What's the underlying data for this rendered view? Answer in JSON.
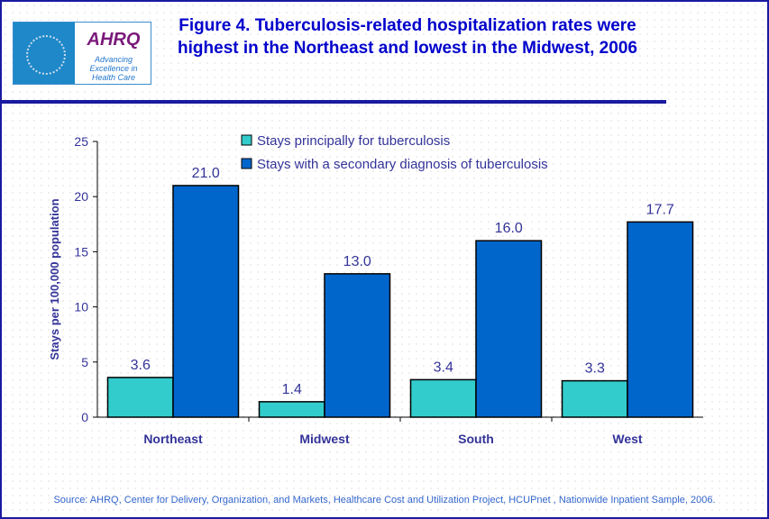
{
  "title": "Figure 4. Tuberculosis-related hospitalization rates were highest in the Northeast and lowest in the Midwest, 2006",
  "logo": {
    "brand": "AHRQ",
    "tagline": "Advancing Excellence in Health Care"
  },
  "source": "Source: AHRQ, Center for Delivery, Organization, and Markets, Healthcare Cost and Utilization Project, HCUPnet , Nationwide Inpatient Sample, 2006.",
  "chart_data": {
    "type": "bar",
    "title": "Figure 4. Tuberculosis-related hospitalization rates were highest in the Northeast and lowest in the Midwest, 2006",
    "xlabel": "",
    "ylabel": "Stays per 100,000 population",
    "ylim": [
      0,
      25
    ],
    "yticks": [
      0,
      5,
      10,
      15,
      20,
      25
    ],
    "categories": [
      "Northeast",
      "Midwest",
      "South",
      "West"
    ],
    "series": [
      {
        "name": "Stays principally for tuberculosis",
        "color": "#33cccc",
        "values": [
          3.6,
          1.4,
          3.4,
          3.3
        ],
        "labels": [
          "3.6",
          "1.4",
          "3.4",
          "3.3"
        ]
      },
      {
        "name": "Stays with a secondary diagnosis of tuberculosis",
        "color": "#0066cc",
        "values": [
          21.0,
          13.0,
          16.0,
          17.7
        ],
        "labels": [
          "21.0",
          "13.0",
          "16.0",
          "17.7"
        ]
      }
    ],
    "legend": "top-center",
    "grid": false
  }
}
